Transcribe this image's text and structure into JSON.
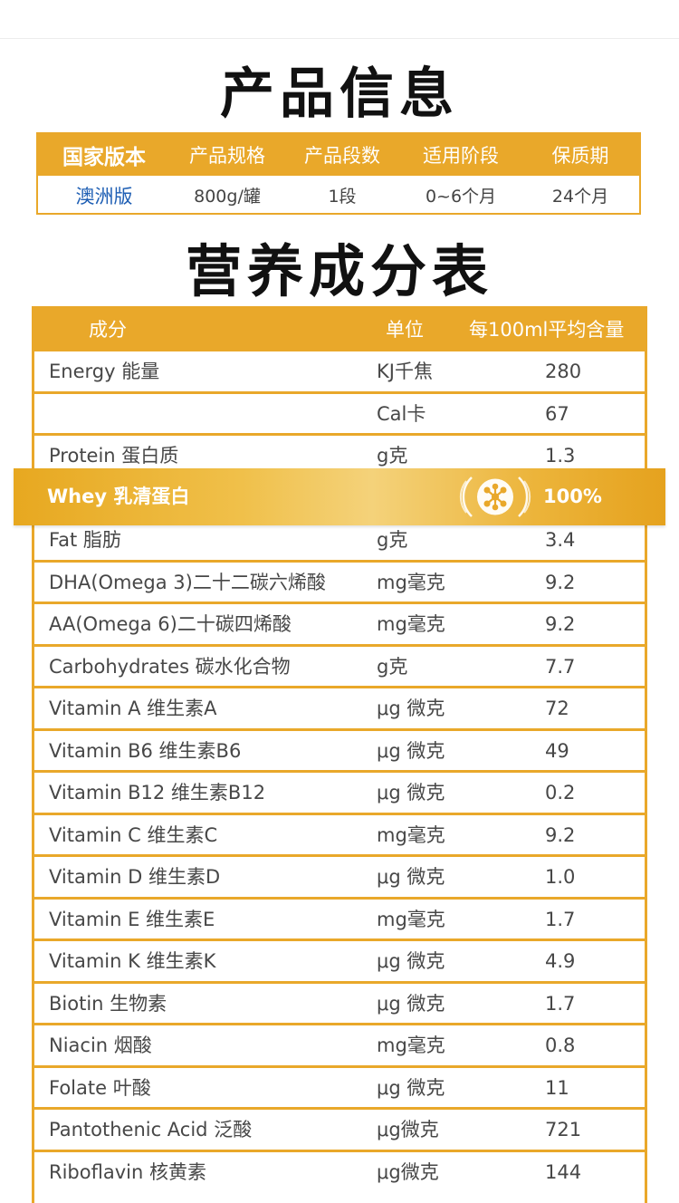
{
  "product_info": {
    "title": "产品信息",
    "headers": [
      "国家版本",
      "产品规格",
      "产品段数",
      "适用阶段",
      "保质期"
    ],
    "values": [
      "澳洲版",
      "800g/罐",
      "1段",
      "0~6个月",
      "24个月"
    ]
  },
  "nutrition": {
    "title": "营养成分表",
    "headers": {
      "name": "成分",
      "unit": "单位",
      "value": "每100ml平均含量"
    },
    "rows": [
      {
        "name": "Energy 能量",
        "unit": "KJ千焦",
        "value": "280"
      },
      {
        "name": "",
        "unit": "Cal卡",
        "value": "67"
      },
      {
        "name": "Protein 蛋白质",
        "unit": "g克",
        "value": "1.3"
      },
      {
        "name": "Whey 乳清蛋白",
        "unit": "",
        "value": "100%"
      },
      {
        "name": "Fat 脂肪",
        "unit": "g克",
        "value": "3.4"
      },
      {
        "name": "DHA(Omega 3)二十二碳六烯酸",
        "unit": "mg毫克",
        "value": "9.2"
      },
      {
        "name": "AA(Omega 6)二十碳四烯酸",
        "unit": "mg毫克",
        "value": "9.2"
      },
      {
        "name": "Carbohydrates 碳水化合物",
        "unit": "g克",
        "value": "7.7"
      },
      {
        "name": "Vitamin A 维生素A",
        "unit": "μg 微克",
        "value": "72"
      },
      {
        "name": "Vitamin B6 维生素B6",
        "unit": "μg 微克",
        "value": "49"
      },
      {
        "name": "Vitamin B12 维生素B12",
        "unit": "μg 微克",
        "value": "0.2"
      },
      {
        "name": "Vitamin C 维生素C",
        "unit": "mg毫克",
        "value": "9.2"
      },
      {
        "name": "Vitamin D 维生素D",
        "unit": "μg 微克",
        "value": "1.0"
      },
      {
        "name": "Vitamin E 维生素E",
        "unit": "mg毫克",
        "value": "1.7"
      },
      {
        "name": "Vitamin K 维生素K",
        "unit": "μg 微克",
        "value": "4.9"
      },
      {
        "name": "Biotin 生物素",
        "unit": "μg 微克",
        "value": "1.7"
      },
      {
        "name": "Niacin 烟酸",
        "unit": "mg毫克",
        "value": "0.8"
      },
      {
        "name": "Folate 叶酸",
        "unit": "μg 微克",
        "value": "11"
      },
      {
        "name": "Pantothenic Acid 泛酸",
        "unit": "μg微克",
        "value": "721"
      },
      {
        "name": "Riboflavin 核黄素",
        "unit": "μg微克",
        "value": "144"
      }
    ]
  },
  "colors": {
    "accent": "#e9a82a",
    "version_text": "#1f5fb4"
  },
  "icons": {
    "whey_badge": "molecule-icon"
  }
}
